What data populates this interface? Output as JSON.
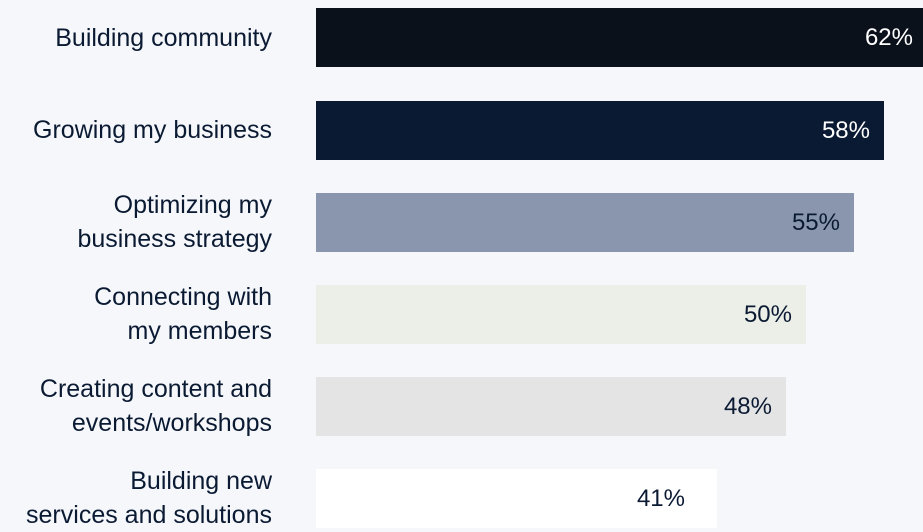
{
  "chart_data": {
    "type": "bar",
    "orientation": "horizontal",
    "categories": [
      "Building community",
      "Growing my business",
      "Optimizing my\nbusiness strategy",
      "Connecting with\nmy members",
      "Creating content and\nevents/workshops",
      "Building new\nservices and solutions"
    ],
    "values": [
      62,
      58,
      55,
      50,
      48,
      41
    ],
    "value_labels": [
      "62%",
      "58%",
      "55%",
      "50%",
      "48%",
      "41%"
    ],
    "bar_colors": [
      "#0a111b",
      "#0b1a33",
      "#8a96ad",
      "#ecefe8",
      "#e4e4e4",
      "#ffffff"
    ],
    "label_colors": [
      "#ffffff",
      "#ffffff",
      "#0b1a33",
      "#0b1a33",
      "#0b1a33",
      "#0b1a33"
    ],
    "title": "",
    "xlabel": "",
    "ylabel": "",
    "xlim": [
      0,
      62
    ],
    "grid": false,
    "legend": "none"
  }
}
